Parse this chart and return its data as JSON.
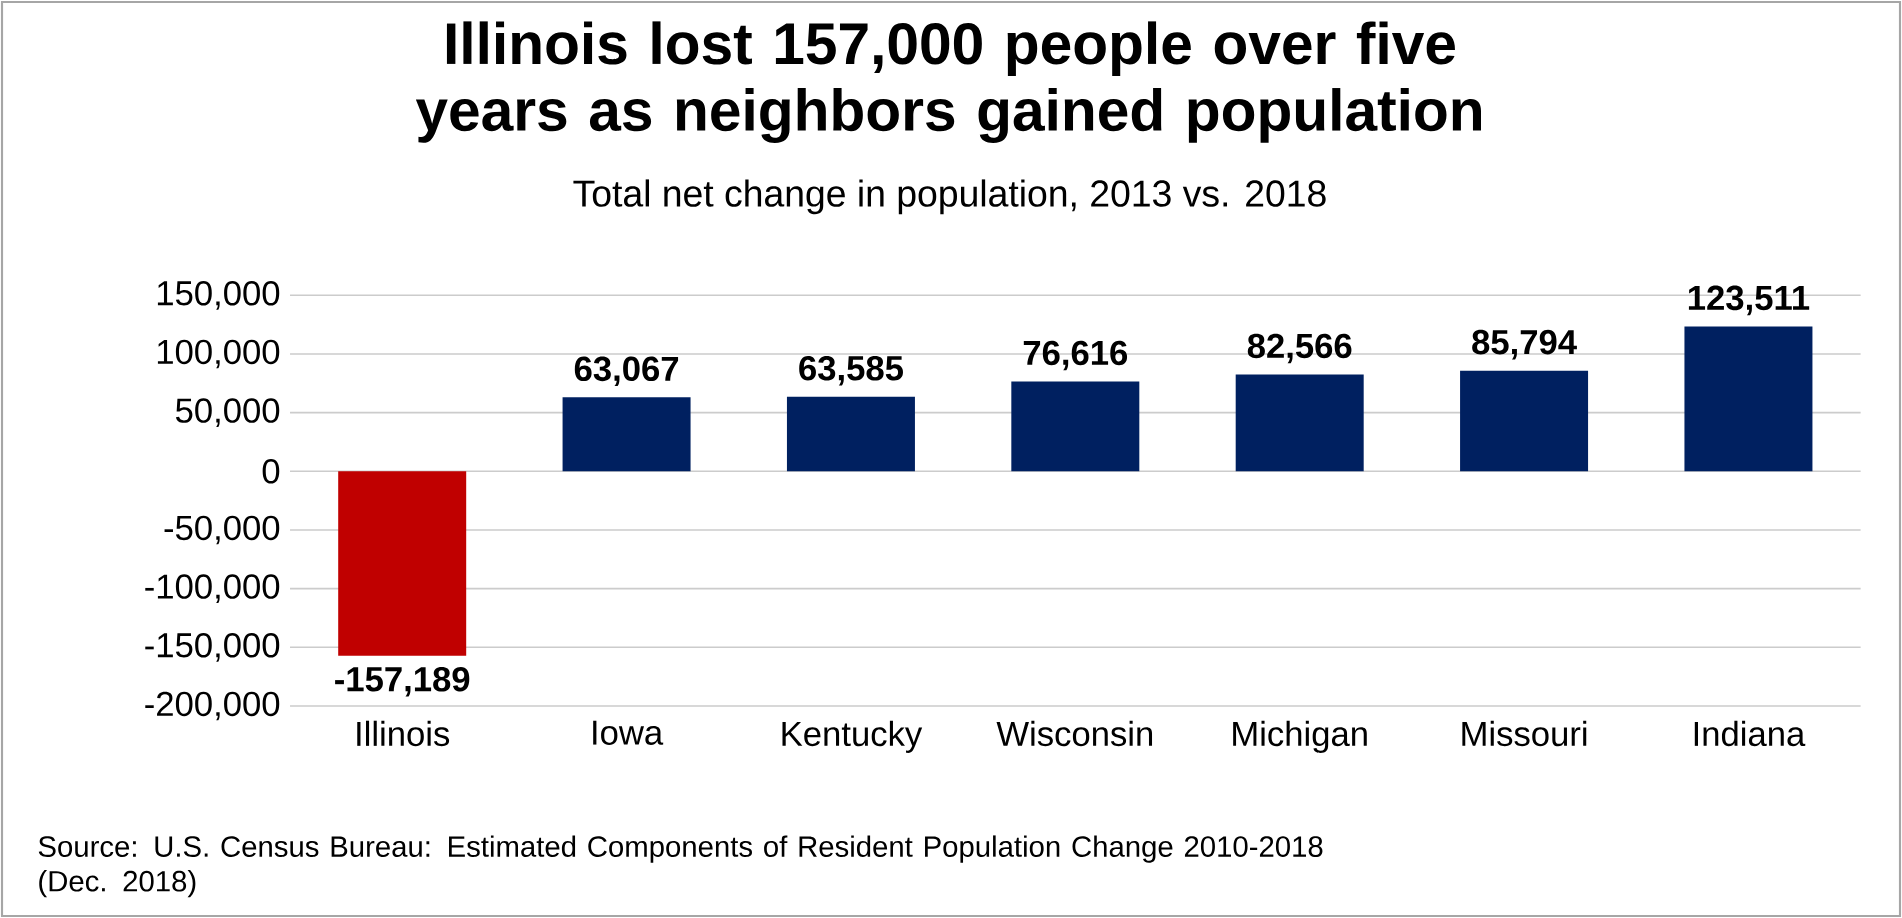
{
  "chart_data": {
    "type": "bar",
    "title": "Illinois lost 157,000 people over five years as neighbors gained population",
    "subtitle": "Total net change in population, 2013 vs. 2018",
    "categories": [
      "Illinois",
      "Iowa",
      "Kentucky",
      "Wisconsin",
      "Michigan",
      "Missouri",
      "Indiana"
    ],
    "values": [
      -157189,
      63067,
      63585,
      76616,
      82566,
      85794,
      123511
    ],
    "colors": [
      "#c00000",
      "#002060",
      "#002060",
      "#002060",
      "#002060",
      "#002060",
      "#002060"
    ],
    "value_labels": [
      "-157,189",
      "63,067",
      "63,585",
      "76,616",
      "82,566",
      "85,794",
      "123,511"
    ],
    "ylim": [
      -200000,
      150000
    ],
    "yticks": [
      {
        "value": -200000,
        "label": "-200,000"
      },
      {
        "value": -150000,
        "label": "-150,000"
      },
      {
        "value": -100000,
        "label": "-100,000"
      },
      {
        "value": -50000,
        "label": "-50,000"
      },
      0,
      {
        "value": 50000,
        "label": "50,000"
      },
      {
        "value": 100000,
        "label": "100,000"
      },
      {
        "value": 150000,
        "label": "150,000"
      }
    ],
    "grid": "y",
    "annotations": [
      "Source: U.S. Census Bureau: Estimated Components of Resident Population Change 2010-2018 (Dec. 2018)"
    ]
  }
}
